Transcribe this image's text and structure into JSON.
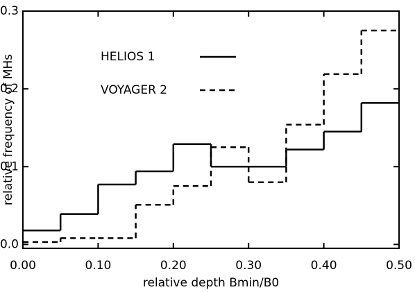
{
  "chart_data": {
    "type": "histogram",
    "x_label": "relative depth Bmin/B0",
    "y_label": "relative frequency of MHs",
    "bins": [
      0.0,
      0.05,
      0.1,
      0.15,
      0.2,
      0.25,
      0.3,
      0.35,
      0.4,
      0.45,
      0.5
    ],
    "series": [
      {
        "name": "HELIOS 1",
        "color": "#000000",
        "dash": false,
        "values": [
          0.018,
          0.039,
          0.077,
          0.094,
          0.129,
          0.1,
          0.1,
          0.122,
          0.145,
          0.182
        ]
      },
      {
        "name": "VOYAGER 2",
        "color": "#000000",
        "dash": true,
        "values": [
          0.003,
          0.008,
          0.008,
          0.051,
          0.075,
          0.125,
          0.08,
          0.154,
          0.219,
          0.275
        ]
      }
    ],
    "xlim": [
      0.0,
      0.5
    ],
    "xticks": [
      {
        "value": 0.0,
        "label": "0.00"
      },
      {
        "value": 0.1,
        "label": "0.10"
      },
      {
        "value": 0.2,
        "label": "0.20"
      },
      {
        "value": 0.3,
        "label": "0.30"
      },
      {
        "value": 0.4,
        "label": "0.40"
      },
      {
        "value": 0.5,
        "label": "0.50"
      }
    ],
    "ylim": [
      -0.005,
      0.3
    ],
    "yticks": [
      {
        "value": 0.0,
        "label": "0.0"
      },
      {
        "value": 0.1,
        "label": "0.1"
      },
      0.2,
      {
        "value": 0.3,
        "label": "0.3"
      }
    ]
  }
}
